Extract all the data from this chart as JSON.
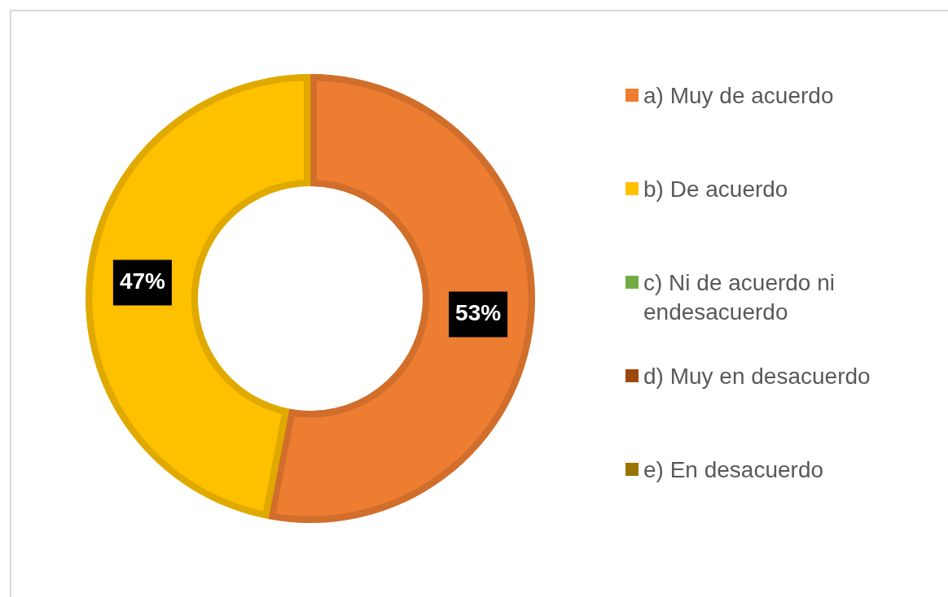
{
  "chart_data": {
    "type": "donut",
    "categories": [
      "a) Muy de acuerdo",
      "b) De acuerdo",
      "c) Ni de acuerdo ni endesacuerdo",
      "d) Muy en desacuerdo",
      "e) En desacuerdo"
    ],
    "values": [
      53,
      47,
      0,
      0,
      0
    ],
    "colors": [
      "#ed7d31",
      "#ffc000",
      "#70ad47",
      "#9e480e",
      "#997300"
    ],
    "value_labels": [
      "53%",
      "47%",
      null,
      null,
      null
    ],
    "legend": "right"
  }
}
